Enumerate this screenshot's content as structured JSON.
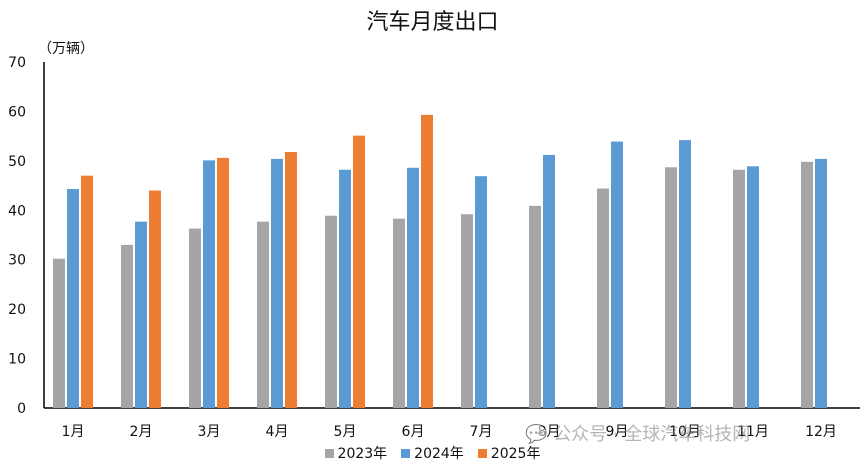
{
  "chart_data": {
    "type": "bar",
    "title": "汽车月度出口",
    "ylabel": "（万辆）",
    "ylim": [
      0,
      70
    ],
    "yticks": [
      "0",
      "10",
      "20",
      "30",
      "40",
      "50",
      "60",
      "70"
    ],
    "categories": [
      "1月",
      "2月",
      "3月",
      "4月",
      "5月",
      "6月",
      "7月",
      "8月",
      "9月",
      "10月",
      "11月",
      "12月"
    ],
    "series": [
      {
        "name": "2023年",
        "color": "#A5A5A5",
        "values": [
          30.2,
          33.0,
          36.3,
          37.7,
          38.9,
          38.3,
          39.2,
          40.9,
          44.4,
          48.7,
          48.2,
          49.8
        ]
      },
      {
        "name": "2024年",
        "color": "#5B9BD5",
        "values": [
          44.3,
          37.7,
          50.1,
          50.4,
          48.2,
          48.6,
          46.9,
          51.2,
          53.9,
          54.2,
          48.9,
          50.4
        ]
      },
      {
        "name": "2025年",
        "color": "#ED7D31",
        "values": [
          47.0,
          44.0,
          50.6,
          51.8,
          55.1,
          59.3,
          null,
          null,
          null,
          null,
          null,
          null
        ]
      }
    ],
    "grid": false,
    "legend_position": "bottom"
  },
  "watermark": {
    "text": "公众号 · 全球汽车科技网",
    "icon": "wechat-icon"
  }
}
